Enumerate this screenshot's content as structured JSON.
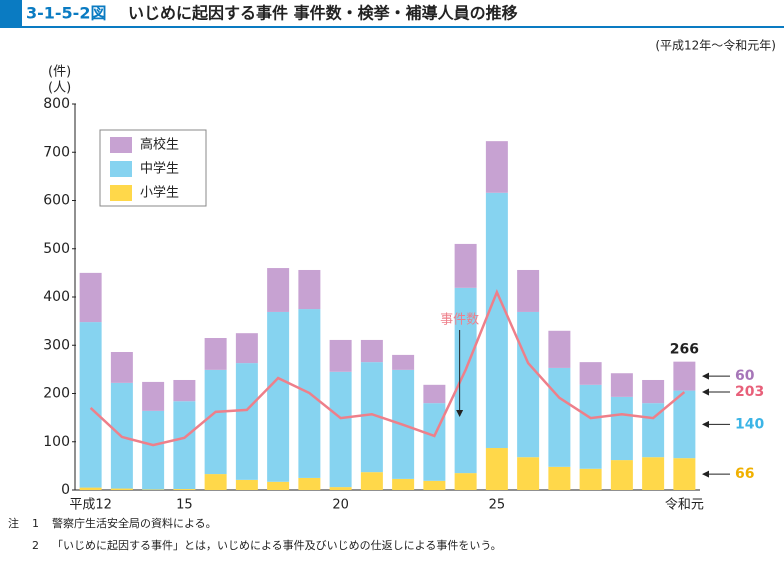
{
  "header": {
    "figure_id": "3-1-5-2図",
    "title": "いじめに起因する事件 事件数・検挙・補導人員の推移"
  },
  "chart_data": {
    "type": "bar",
    "stacked": true,
    "subtitle": "(平成12年～令和元年)",
    "y_label": [
      "(件)",
      "(人)"
    ],
    "categories": [
      "平成12",
      null,
      null,
      "15",
      null,
      null,
      null,
      null,
      "20",
      null,
      null,
      null,
      null,
      "25",
      null,
      null,
      null,
      null,
      null,
      "令和元"
    ],
    "series": [
      {
        "name": "小学生",
        "type": "bar",
        "color": "#ffd84a",
        "values": [
          5,
          3,
          1,
          2,
          33,
          21,
          17,
          25,
          6,
          37,
          23,
          19,
          35,
          87,
          68,
          48,
          44,
          62,
          68,
          66
        ]
      },
      {
        "name": "中学生",
        "type": "bar",
        "color": "#86d3f0",
        "values": [
          343,
          219,
          163,
          182,
          216,
          242,
          352,
          350,
          239,
          228,
          226,
          161,
          384,
          529,
          301,
          205,
          174,
          131,
          112,
          140
        ]
      },
      {
        "name": "高校生",
        "type": "bar",
        "color": "#c7a2d2",
        "values": [
          102,
          64,
          60,
          44,
          66,
          62,
          91,
          81,
          66,
          46,
          31,
          38,
          91,
          107,
          87,
          77,
          47,
          49,
          48,
          60
        ]
      },
      {
        "name": "事件数",
        "type": "line",
        "color": "#ee7f8a",
        "values": [
          170,
          110,
          93,
          108,
          162,
          166,
          232,
          201,
          149,
          157,
          135,
          112,
          249,
          410,
          263,
          191,
          149,
          157,
          149,
          203
        ]
      }
    ],
    "label_colors": [
      "#f0b000",
      "#3bb4e6",
      "#a676b8",
      "#e8607a"
    ],
    "total_label": 266,
    "ylim": [
      0,
      800
    ],
    "yticks": [
      0,
      100,
      200,
      300,
      400,
      500,
      600,
      700,
      800
    ],
    "legend": "upper-left"
  },
  "notes": {
    "label": "注",
    "items": [
      {
        "number": "1",
        "text": "警察庁生活安全局の資料による。"
      },
      {
        "number": "2",
        "text": "「いじめに起因する事件」とは，いじめによる事件及びいじめの仕返しによる事件をいう。"
      }
    ]
  }
}
